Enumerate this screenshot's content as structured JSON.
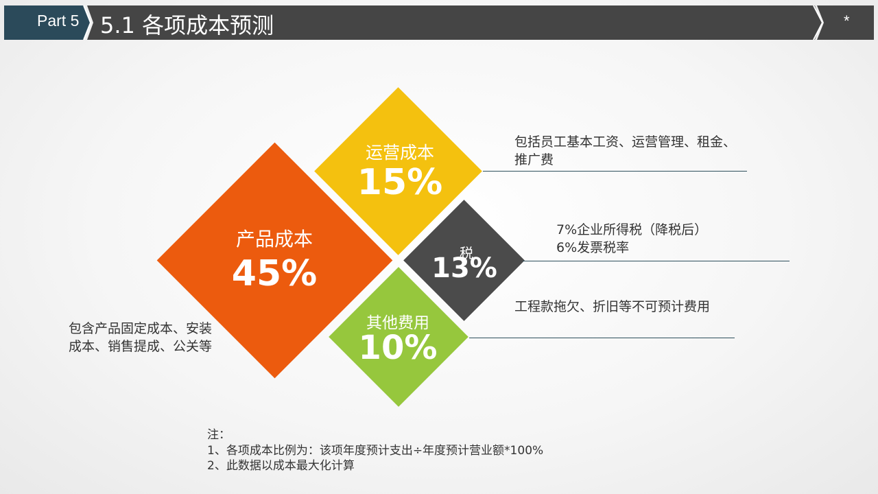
{
  "header": {
    "part_label": "Part 5",
    "title": "5.1 各项成本预测",
    "slide_mark": "*",
    "colors": {
      "part_tab": "#2b4a5a",
      "title_bar": "#454545"
    }
  },
  "costs": {
    "product": {
      "label": "产品成本",
      "percent": "45%",
      "color": "#ec5b0e",
      "description": "包含产品固定成本、安装成本、销售提成、公关等"
    },
    "operations": {
      "label": "运营成本",
      "percent": "15%",
      "color": "#f4c10f",
      "description": "包括员工基本工资、运营管理、租金、推广费"
    },
    "tax": {
      "label": "税",
      "percent": "13%",
      "color": "#4b4b4b",
      "description_line1": "7%企业所得税（降税后）",
      "description_line2": "6%发票税率"
    },
    "other": {
      "label": "其他费用",
      "percent": "10%",
      "color": "#96c73d",
      "description": "工程款拖欠、折旧等不可预计费用"
    }
  },
  "notes": {
    "heading": "注：",
    "line1": "1、各项成本比例为：该项年度预计支出÷年度预计营业额*100%",
    "line2": "2、此数据以成本最大化计算"
  }
}
